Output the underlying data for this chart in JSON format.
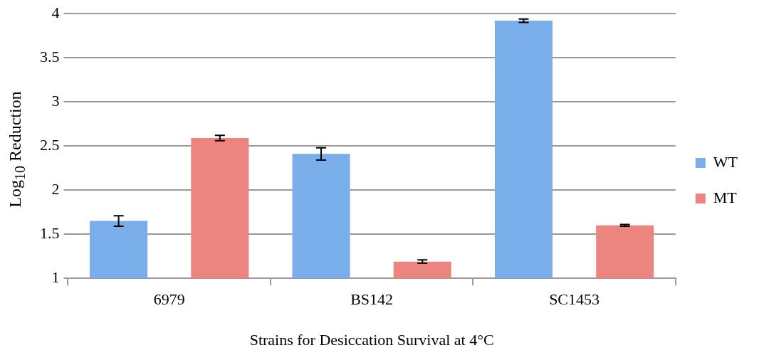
{
  "chart_data": {
    "type": "bar",
    "xlabel": "Strains for Desiccation Survival at 4°C",
    "ylabel": "Log$_{10}$ Reduction",
    "categories": [
      "6979",
      "BS142",
      "SC1453"
    ],
    "series": [
      {
        "name": "WT",
        "color": "#7aaeea",
        "values": [
          1.65,
          2.41,
          3.92
        ],
        "errors": [
          0.06,
          0.07,
          0.02
        ]
      },
      {
        "name": "MT",
        "color": "#ec8580",
        "values": [
          2.59,
          1.19,
          1.6
        ],
        "errors": [
          0.03,
          0.02,
          0.01
        ]
      }
    ],
    "ylim": [
      1,
      4
    ],
    "yticks": [
      1,
      1.5,
      2,
      2.5,
      3,
      3.5,
      4
    ],
    "grid": "y",
    "legend": "right"
  }
}
